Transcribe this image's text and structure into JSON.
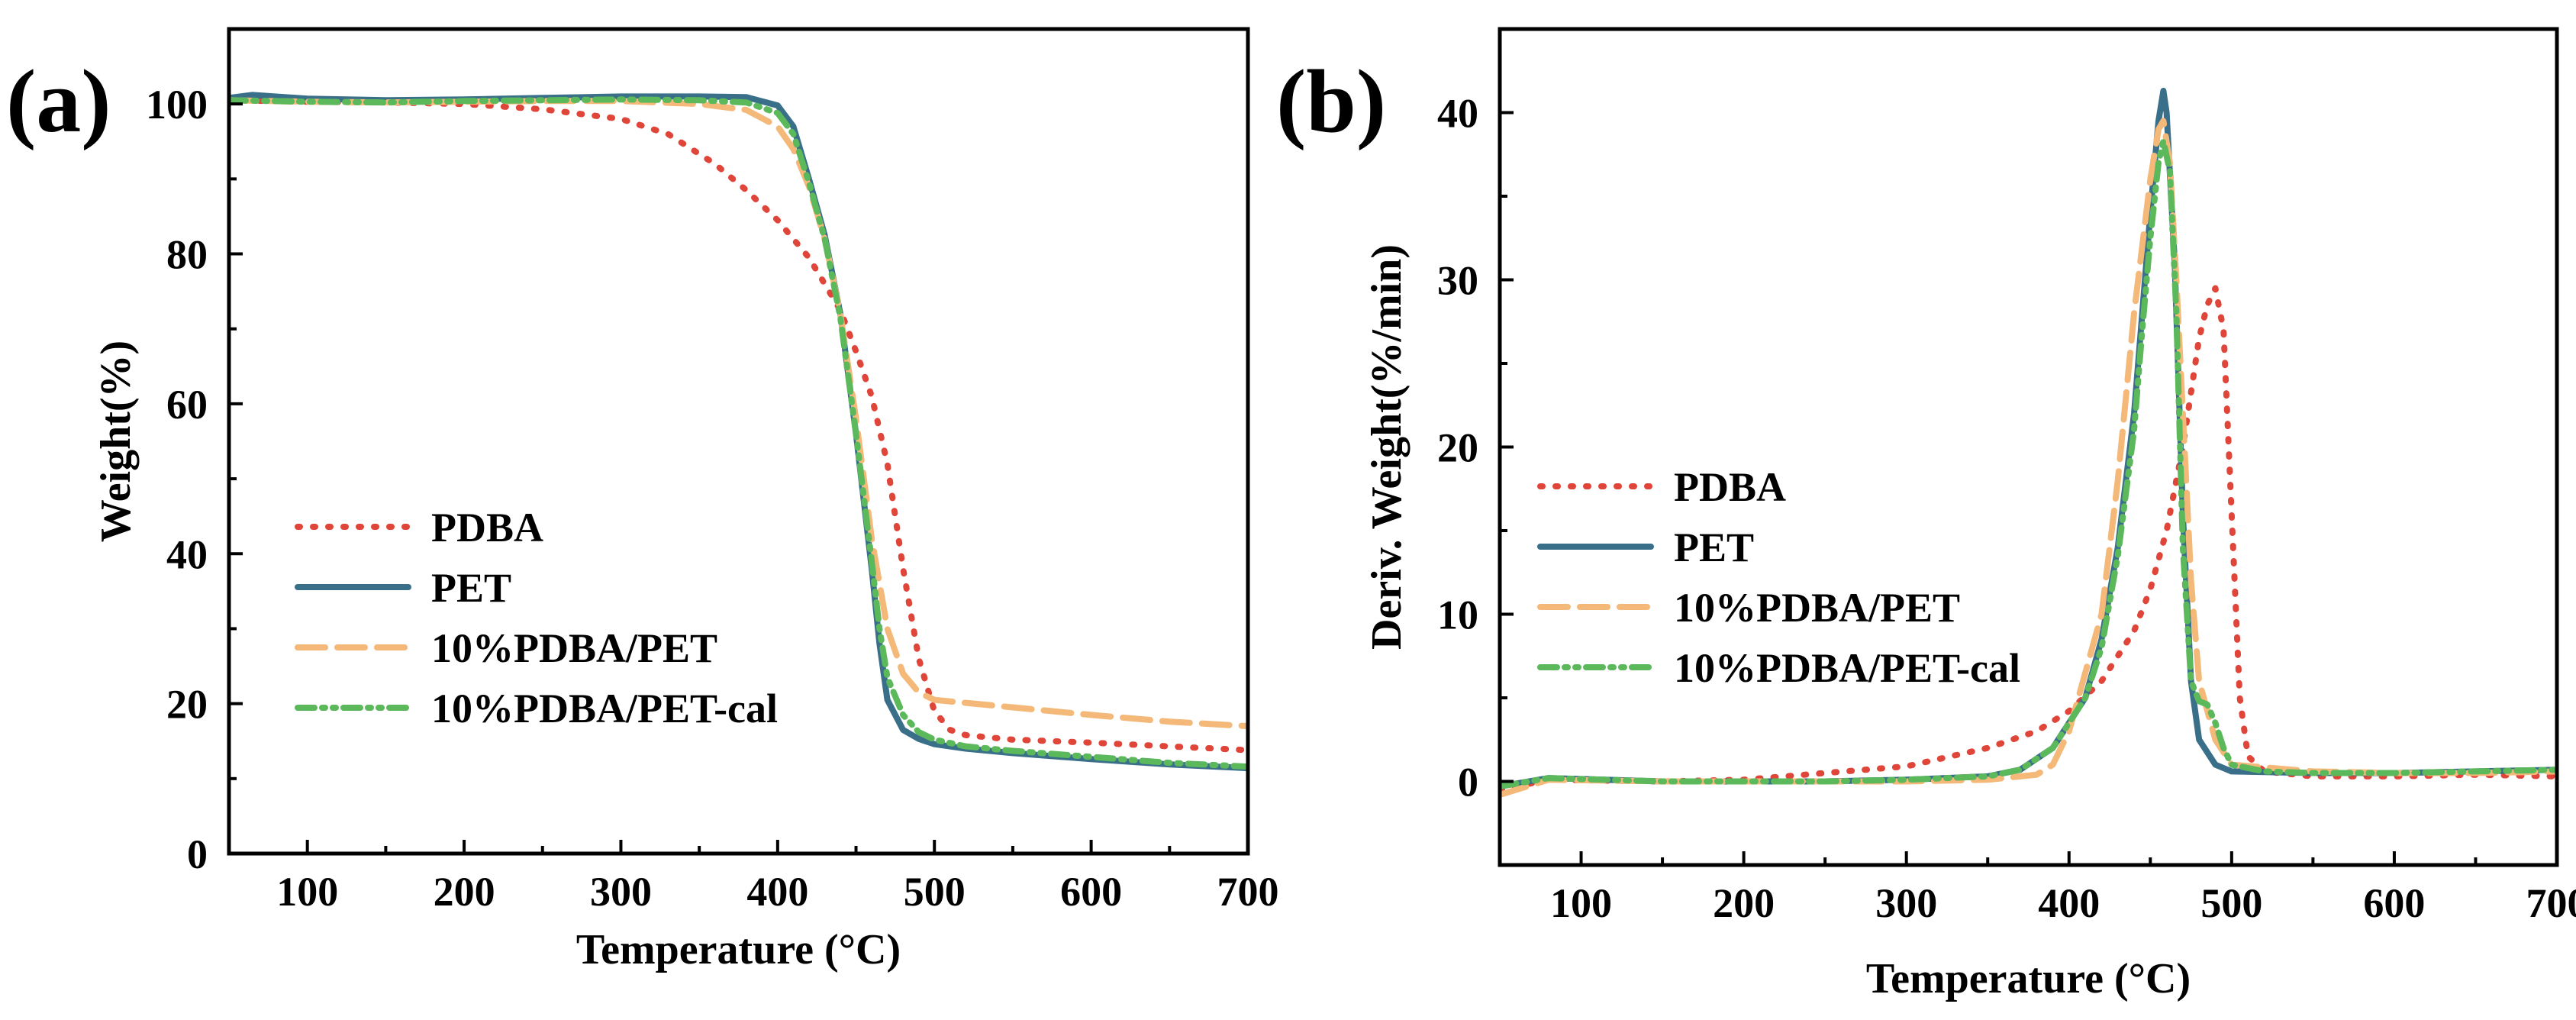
{
  "chart_data": [
    {
      "panel": "(a)",
      "type": "line",
      "title": "",
      "xlabel": "Temperature (°C)",
      "ylabel": "Weight(%)",
      "xlim": [
        50,
        700
      ],
      "ylim": [
        0,
        110
      ],
      "xticks": [
        100,
        200,
        300,
        400,
        500,
        600,
        700
      ],
      "yticks": [
        0,
        20,
        40,
        60,
        80,
        100
      ],
      "legend": "bottom-left",
      "series": [
        {
          "name": "PDBA",
          "color": "#E0453A",
          "dash": "dot",
          "x": [
            50,
            100,
            150,
            200,
            250,
            300,
            330,
            360,
            380,
            400,
            420,
            440,
            450,
            460,
            470,
            480,
            490,
            500,
            510,
            520,
            550,
            600,
            650,
            700
          ],
          "y": [
            100.5,
            100.3,
            100.2,
            100.0,
            99.3,
            98.0,
            96.0,
            92.0,
            88.5,
            84.5,
            79.5,
            72.5,
            67.0,
            61.0,
            52.0,
            38.0,
            26.0,
            19.0,
            16.5,
            15.8,
            15.2,
            14.8,
            14.3,
            13.8
          ]
        },
        {
          "name": "PET",
          "color": "#3A6F8A",
          "dash": "solid",
          "x": [
            50,
            65,
            100,
            150,
            200,
            250,
            300,
            350,
            380,
            400,
            410,
            420,
            430,
            440,
            450,
            460,
            465,
            470,
            480,
            490,
            500,
            520,
            550,
            600,
            650,
            700
          ],
          "y": [
            100.8,
            101.2,
            100.7,
            100.5,
            100.6,
            100.8,
            101.0,
            101.0,
            100.9,
            99.8,
            97.0,
            90.0,
            82.5,
            72.0,
            56.0,
            38.0,
            28.0,
            20.5,
            16.5,
            15.3,
            14.6,
            14.0,
            13.4,
            12.6,
            11.9,
            11.4
          ]
        },
        {
          "name": "10%PDBA/PET",
          "color": "#F4B878",
          "dash": "dash",
          "x": [
            50,
            100,
            150,
            200,
            250,
            300,
            350,
            380,
            400,
            410,
            420,
            430,
            440,
            450,
            460,
            470,
            480,
            490,
            500,
            550,
            600,
            650,
            700
          ],
          "y": [
            100.5,
            100.3,
            100.2,
            100.3,
            100.4,
            100.4,
            100.0,
            99.2,
            97.0,
            94.0,
            89.0,
            82.0,
            72.0,
            58.0,
            42.0,
            30.0,
            24.0,
            21.5,
            20.5,
            19.5,
            18.5,
            17.6,
            17.0
          ]
        },
        {
          "name": "10%PDBA/PET-cal",
          "color": "#5BB85B",
          "dash": "dashdotdot",
          "x": [
            50,
            100,
            150,
            200,
            250,
            300,
            350,
            380,
            400,
            410,
            420,
            430,
            440,
            450,
            460,
            465,
            470,
            480,
            490,
            500,
            520,
            550,
            600,
            650,
            700
          ],
          "y": [
            100.5,
            100.3,
            100.2,
            100.4,
            100.5,
            100.6,
            100.5,
            100.2,
            98.8,
            96.0,
            89.5,
            82.0,
            71.5,
            56.0,
            39.0,
            30.0,
            23.5,
            18.5,
            16.2,
            15.2,
            14.3,
            13.7,
            12.9,
            12.1,
            11.6
          ]
        }
      ]
    },
    {
      "panel": "(b)",
      "type": "line",
      "title": "",
      "xlabel": "Temperature (°C)",
      "ylabel": "Deriv. Weight(%/min)",
      "xlim": [
        50,
        700
      ],
      "ylim": [
        -5,
        45
      ],
      "xticks": [
        100,
        200,
        300,
        400,
        500,
        600,
        700
      ],
      "yticks": [
        0,
        10,
        20,
        30,
        40
      ],
      "legend": "bottom-left",
      "series": [
        {
          "name": "PDBA",
          "color": "#E0453A",
          "dash": "dot",
          "x": [
            50,
            80,
            150,
            200,
            250,
            300,
            350,
            380,
            400,
            420,
            440,
            450,
            460,
            470,
            480,
            485,
            490,
            495,
            500,
            505,
            510,
            520,
            550,
            600,
            650,
            700
          ],
          "y": [
            -0.5,
            0.1,
            0.0,
            0.1,
            0.5,
            0.9,
            2.0,
            3.0,
            4.2,
            6.0,
            9.0,
            11.5,
            15.0,
            20.0,
            26.5,
            28.5,
            29.5,
            27.0,
            16.0,
            5.0,
            1.5,
            0.6,
            0.3,
            0.3,
            0.4,
            0.3
          ]
        },
        {
          "name": "PET",
          "color": "#3A6F8A",
          "dash": "solid",
          "x": [
            50,
            80,
            150,
            200,
            250,
            300,
            350,
            370,
            390,
            410,
            420,
            430,
            440,
            445,
            450,
            455,
            458,
            460,
            465,
            470,
            475,
            480,
            490,
            500,
            550,
            600,
            650,
            700
          ],
          "y": [
            -0.3,
            0.2,
            0.0,
            0.0,
            0.0,
            0.1,
            0.3,
            0.7,
            2.0,
            5.0,
            8.5,
            14.0,
            22.0,
            28.0,
            34.0,
            39.5,
            41.3,
            40.0,
            31.0,
            16.0,
            6.0,
            2.5,
            1.0,
            0.6,
            0.5,
            0.5,
            0.6,
            0.7
          ]
        },
        {
          "name": "10%PDBA/PET",
          "color": "#F4B878",
          "dash": "dash",
          "x": [
            50,
            80,
            150,
            200,
            250,
            300,
            350,
            380,
            390,
            400,
            420,
            430,
            440,
            450,
            455,
            458,
            462,
            466,
            470,
            475,
            480,
            490,
            500,
            550,
            600,
            650,
            700
          ],
          "y": [
            -0.8,
            0.1,
            0.0,
            0.0,
            0.0,
            0.0,
            0.1,
            0.4,
            1.0,
            3.0,
            10.0,
            18.0,
            28.0,
            36.0,
            39.0,
            39.5,
            37.0,
            30.0,
            22.0,
            12.0,
            6.0,
            2.5,
            1.0,
            0.6,
            0.5,
            0.5,
            0.6
          ]
        },
        {
          "name": "10%PDBA/PET-cal",
          "color": "#5BB85B",
          "dash": "dashdotdot",
          "x": [
            50,
            80,
            150,
            200,
            250,
            300,
            350,
            370,
            390,
            410,
            420,
            430,
            440,
            445,
            450,
            455,
            458,
            462,
            466,
            470,
            475,
            480,
            485,
            490,
            495,
            500,
            520,
            550,
            600,
            650,
            700
          ],
          "y": [
            -0.3,
            0.2,
            0.0,
            0.0,
            0.0,
            0.1,
            0.3,
            0.7,
            2.0,
            5.0,
            8.0,
            13.5,
            21.0,
            27.0,
            32.5,
            37.0,
            38.3,
            36.5,
            28.0,
            14.0,
            6.0,
            4.8,
            4.6,
            3.5,
            2.0,
            1.0,
            0.6,
            0.5,
            0.5,
            0.6,
            0.7
          ]
        }
      ]
    }
  ]
}
